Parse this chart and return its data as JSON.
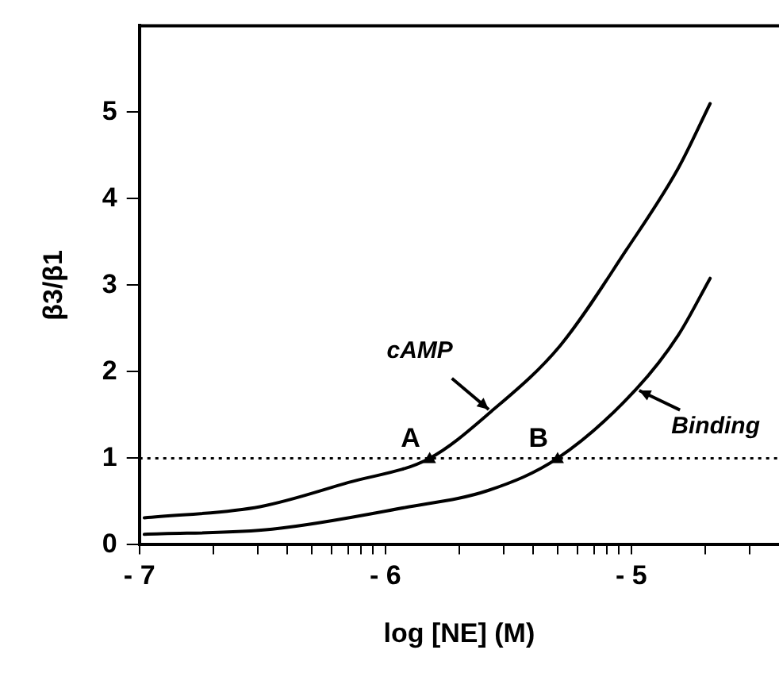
{
  "chart_data": {
    "type": "line",
    "xlabel": "log [NE] (M)",
    "ylabel": "β3/β1",
    "xlim": [
      -7,
      -4.4
    ],
    "xticks": [
      -7,
      {
        "value": -6.7,
        "label": null
      },
      {
        "value": -6.52,
        "label": null
      },
      {
        "value": -6.4,
        "label": null
      },
      {
        "value": -6.3,
        "label": null
      },
      {
        "value": -6.22,
        "label": null
      },
      {
        "value": -6.15,
        "label": null
      },
      {
        "value": -6.1,
        "label": null
      },
      {
        "value": -6.05,
        "label": null
      },
      -6,
      {
        "value": -5.7,
        "label": null
      },
      {
        "value": -5.52,
        "label": null
      },
      {
        "value": -5.4,
        "label": null
      },
      {
        "value": -5.3,
        "label": null
      },
      {
        "value": -5.22,
        "label": null
      },
      {
        "value": -5.15,
        "label": null
      },
      {
        "value": -5.1,
        "label": null
      },
      {
        "value": -5.05,
        "label": null
      },
      -5,
      {
        "value": -4.7,
        "label": null
      },
      {
        "value": -4.52,
        "label": null
      }
    ],
    "ylim": [
      0,
      6
    ],
    "yticks": [
      0,
      1,
      2,
      3,
      4,
      5
    ],
    "series": [
      {
        "color": "#000000",
        "x": [
          -6.98,
          -6.51,
          -6.15,
          -5.82,
          -5.57,
          -5.29,
          -5.02,
          -4.81,
          -4.68
        ],
        "values": [
          0.31,
          0.44,
          0.72,
          1.0,
          1.54,
          2.3,
          3.41,
          4.35,
          5.1
        ]
      },
      {
        "color": "#000000",
        "x": [
          -6.98,
          -6.46,
          -5.92,
          -5.58,
          -5.3,
          -4.98,
          -4.81,
          -4.68
        ],
        "values": [
          0.12,
          0.18,
          0.43,
          0.63,
          1.0,
          1.8,
          2.42,
          3.08
        ]
      }
    ],
    "ref_lines": [
      {
        "axis": "y",
        "value": 1,
        "color": "#000000",
        "line_style": "dotted"
      }
    ],
    "annotations": [
      {
        "text": "cAMP",
        "x": -5.57,
        "y": 1.54
      },
      {
        "text": "Binding",
        "x": -4.98,
        "y": 1.8
      },
      {
        "text": "A",
        "x": -5.82,
        "y": 1.0
      },
      {
        "text": "B",
        "x": -5.3,
        "y": 1.0
      }
    ],
    "grid": false,
    "legend": false,
    "marker": "none",
    "line_style": "solid"
  }
}
